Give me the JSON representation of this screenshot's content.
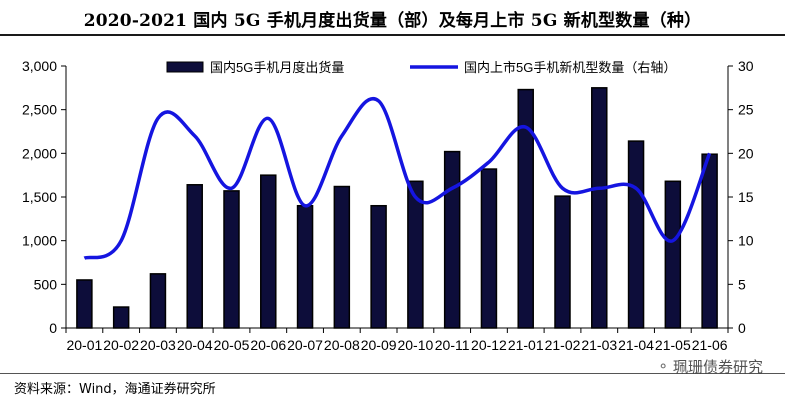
{
  "header": {
    "title": "2020-2021 国内 5G 手机月度出货量（部）及每月上市 5G 新机型数量（种）"
  },
  "footer": {
    "source": "资料来源：Wind，海通证券研究所",
    "watermark": "珮珊债券研究"
  },
  "chart_data": {
    "type": "bar",
    "categories": [
      "20-01",
      "20-02",
      "20-03",
      "20-04",
      "20-05",
      "20-06",
      "20-07",
      "20-08",
      "20-09",
      "20-10",
      "20-11",
      "20-12",
      "21-01",
      "21-02",
      "21-03",
      "21-04",
      "21-05",
      "21-06"
    ],
    "series": [
      {
        "name": "国内5G手机月度出货量",
        "kind": "bar",
        "axis": "left",
        "values": [
          550,
          240,
          620,
          1640,
          1570,
          1750,
          1400,
          1620,
          1400,
          1680,
          2020,
          1820,
          2730,
          1510,
          2750,
          2140,
          1680,
          1990
        ]
      },
      {
        "name": "国内上市5G手机新机型数量（右轴）",
        "kind": "line",
        "axis": "right",
        "values": [
          8,
          10,
          24,
          22,
          16,
          24,
          14,
          22,
          26,
          15,
          16,
          19,
          23,
          16,
          16,
          16,
          10,
          20
        ]
      }
    ],
    "y_left": {
      "min": 0,
      "max": 3000,
      "ticks": [
        "0",
        "500",
        "1,000",
        "1,500",
        "2,000",
        "2,500",
        "3,000"
      ]
    },
    "y_right": {
      "min": 0,
      "max": 30,
      "ticks": [
        "0",
        "5",
        "10",
        "15",
        "20",
        "25",
        "30"
      ]
    },
    "legend_position": "top",
    "grid": false,
    "colors": {
      "bar_fill": "#0d0d3a",
      "bar_stroke": "#000000",
      "line": "#1515e0"
    }
  }
}
